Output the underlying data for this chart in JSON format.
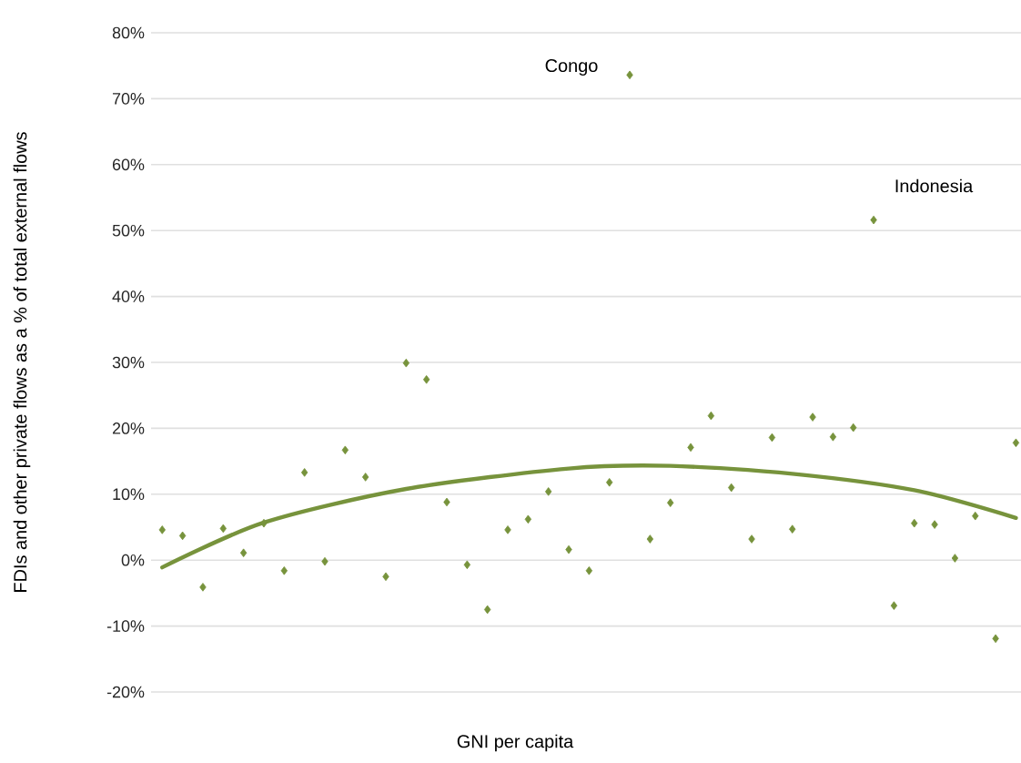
{
  "chart_data": {
    "type": "scatter",
    "xlabel": "GNI per capita",
    "ylabel": "FDIs and other private flows as a % of total external flows",
    "categories": [
      null,
      null,
      null,
      null,
      null,
      null,
      null,
      null,
      null,
      null,
      null,
      null,
      null,
      null,
      null,
      null,
      null,
      null,
      null,
      null,
      null,
      null,
      null,
      null,
      null,
      null,
      null,
      null,
      null,
      null,
      null,
      null,
      null,
      null,
      null,
      null,
      null,
      null,
      null,
      null,
      null,
      null,
      null
    ],
    "series": [
      {
        "color": "#77933c",
        "marker": "diamond",
        "values": [
          4.6,
          3.7,
          -4.1,
          4.8,
          1.1,
          5.6,
          -1.6,
          13.3,
          -0.2,
          16.7,
          12.6,
          -2.5,
          29.9,
          27.4,
          8.8,
          -0.7,
          -7.5,
          4.6,
          6.2,
          10.4,
          1.6,
          -1.6,
          11.8,
          73.6,
          3.2,
          8.7,
          17.1,
          21.9,
          11.0,
          3.2,
          18.6,
          4.7,
          21.7,
          18.7,
          20.1,
          51.6,
          -6.9,
          5.6,
          5.4,
          0.3,
          6.7,
          -11.9,
          17.8
        ]
      },
      {
        "type": "line",
        "color": "#77933c",
        "values": [
          -1.1,
          null,
          null,
          null,
          null,
          5.7,
          null,
          null,
          null,
          null,
          null,
          null,
          10.8,
          null,
          null,
          null,
          null,
          null,
          null,
          null,
          13.9,
          null,
          null,
          null,
          null,
          14.3,
          null,
          null,
          null,
          null,
          null,
          13.1,
          null,
          null,
          null,
          null,
          null,
          10.6,
          null,
          null,
          null,
          null,
          6.4
        ]
      }
    ],
    "annotations": [
      "Congo",
      "Indonesia"
    ],
    "ylim": [
      -20,
      80
    ],
    "yticks": [
      {
        "value": -20,
        "label": "-20%"
      },
      {
        "value": -10,
        "label": "-10%"
      },
      {
        "value": 0,
        "label": "0%"
      },
      {
        "value": 10,
        "label": "10%"
      },
      {
        "value": 20,
        "label": "20%"
      },
      {
        "value": 30,
        "label": "30%"
      },
      {
        "value": 40,
        "label": "40%"
      },
      {
        "value": 50,
        "label": "50%"
      },
      {
        "value": 60,
        "label": "60%"
      },
      {
        "value": 70,
        "label": "70%"
      },
      {
        "value": 80,
        "label": "80%"
      }
    ],
    "tick_labels": "y",
    "grid": "y"
  }
}
